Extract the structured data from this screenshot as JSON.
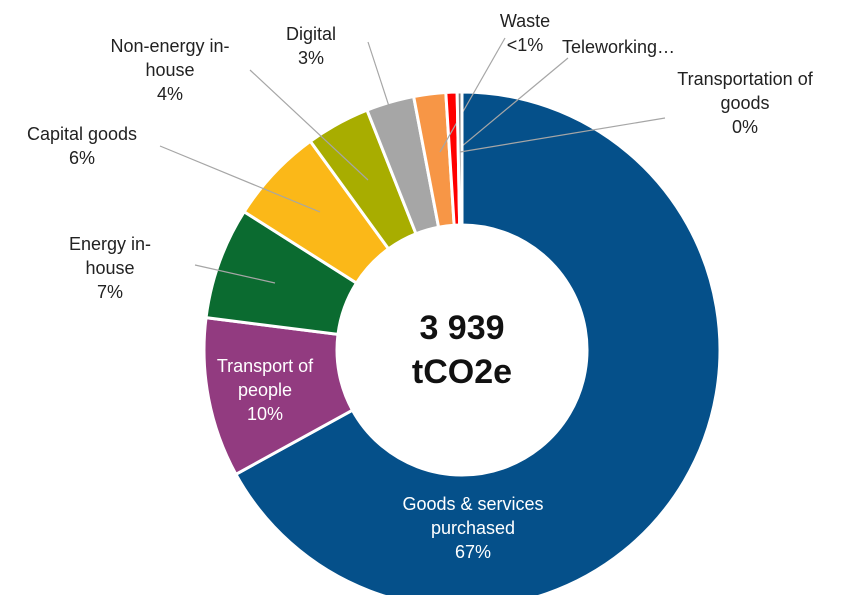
{
  "chart_data": {
    "type": "donut",
    "center_label": "3 939 tCO2e",
    "categories": [
      "Goods & services purchased",
      "Transport of people",
      "Energy in-house",
      "Capital goods",
      "Non-energy in-house",
      "Digital",
      "Teleworking…",
      "Waste",
      "Transportation of goods"
    ],
    "values": [
      67,
      10,
      7,
      6,
      4,
      3,
      2,
      0.7,
      0.3
    ],
    "value_labels": [
      "67%",
      "10%",
      "7%",
      "6%",
      "4%",
      "3%",
      null,
      "<1%",
      "0%"
    ],
    "colors": [
      "#05508a",
      "#923b80",
      "#0b6b30",
      "#fbb818",
      "#a8ad00",
      "#a6a6a6",
      "#f79646",
      "#ff0000",
      "#7f7f7f"
    ]
  }
}
